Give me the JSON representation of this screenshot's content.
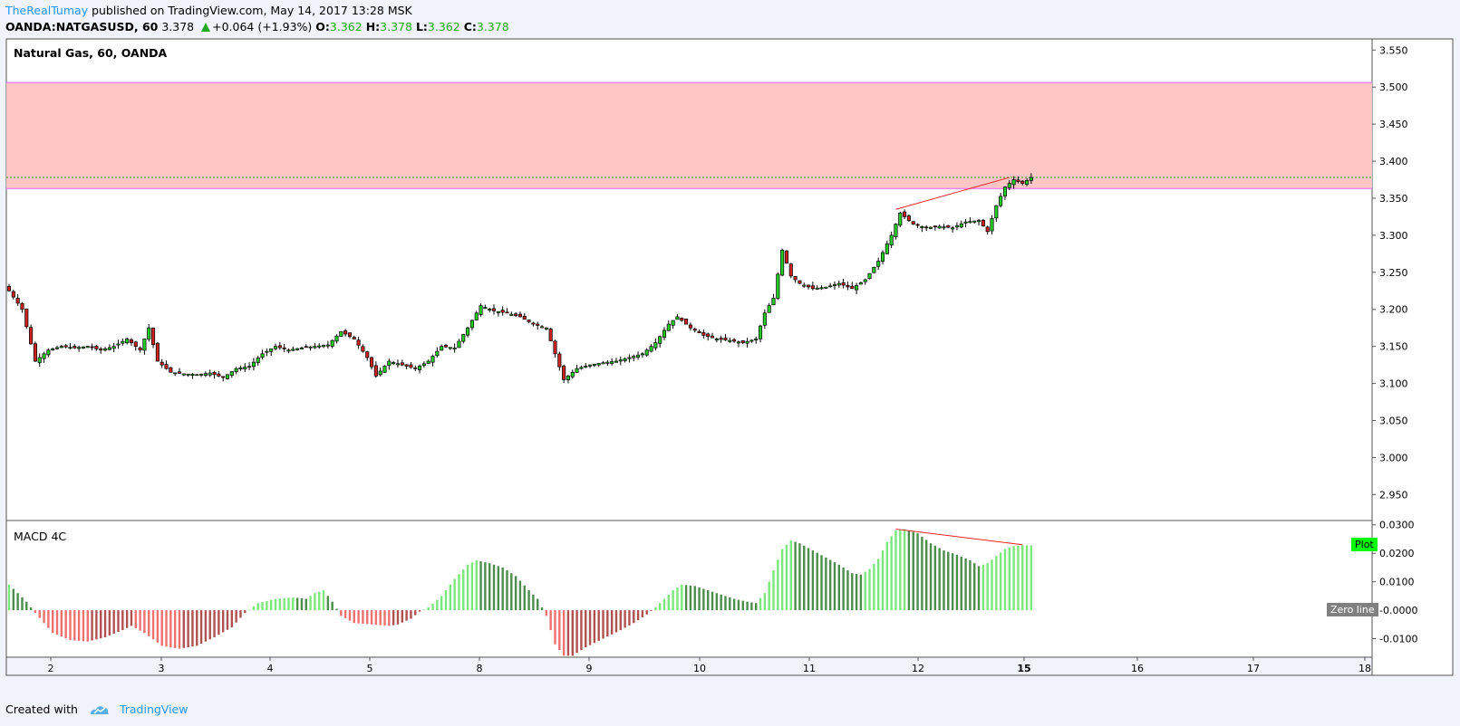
{
  "header": {
    "author": "TheRealTumay",
    "published_text": "published on TradingView.com, May 14, 2017 13:28 MSK",
    "symbol": "OANDA:NATGASUSD, 60",
    "last": "3.378",
    "change": "+0.064 (+1.93%)",
    "o_label": "O:",
    "o_value": "3.362",
    "h_label": "H:",
    "h_value": "3.378",
    "l_label": "L:",
    "l_value": "3.362",
    "c_label": "C:",
    "c_value": "3.378"
  },
  "footer": {
    "created_with": "Created with",
    "brand": "TradingView"
  },
  "colors": {
    "up": "#22cc22",
    "down": "#cc2222",
    "zone_fill": "#ffc6c6",
    "zone_border": "#ee88ee",
    "macd_bright_green": "#7be87b",
    "macd_dark_green": "#4c8c4c",
    "macd_bright_red": "#f07070",
    "macd_dark_red": "#b05050",
    "plot_tag": "#00ff00",
    "zero_tag": "#808080"
  },
  "chart_data": [
    {
      "type": "candlestick",
      "title": "Natural Gas, 60, OANDA",
      "x_tick_labels": [
        "2",
        "3",
        "4",
        "5",
        "8",
        "9",
        "10",
        "11",
        "12",
        "15",
        "16",
        "17",
        "18"
      ],
      "y_tick_labels": [
        "3.550",
        "3.500",
        "3.450",
        "3.400",
        "3.350",
        "3.300",
        "3.250",
        "3.200",
        "3.150",
        "3.100",
        "3.050",
        "3.000",
        "2.950"
      ],
      "ylim": [
        2.915,
        3.565
      ],
      "resistance_zone": [
        3.363,
        3.506
      ],
      "last_price_line": 3.378,
      "trendline": {
        "from": [
          "12",
          3.335
        ],
        "to": [
          "15",
          3.378
        ]
      },
      "close_path": [
        [
          0,
          3.225
        ],
        [
          3,
          3.2
        ],
        [
          6,
          3.13
        ],
        [
          9,
          3.145
        ],
        [
          12,
          3.15
        ],
        [
          15,
          3.148
        ],
        [
          18,
          3.15
        ],
        [
          21,
          3.145
        ],
        [
          24,
          3.15
        ],
        [
          27,
          3.16
        ],
        [
          30,
          3.145
        ],
        [
          32,
          3.175
        ],
        [
          34,
          3.13
        ],
        [
          37,
          3.115
        ],
        [
          40,
          3.113
        ],
        [
          43,
          3.112
        ],
        [
          46,
          3.114
        ],
        [
          49,
          3.108
        ],
        [
          52,
          3.12
        ],
        [
          55,
          3.123
        ],
        [
          58,
          3.14
        ],
        [
          61,
          3.15
        ],
        [
          64,
          3.145
        ],
        [
          67,
          3.148
        ],
        [
          70,
          3.15
        ],
        [
          73,
          3.152
        ],
        [
          76,
          3.17
        ],
        [
          79,
          3.16
        ],
        [
          82,
          3.135
        ],
        [
          84,
          3.11
        ],
        [
          87,
          3.13
        ],
        [
          90,
          3.125
        ],
        [
          93,
          3.12
        ],
        [
          96,
          3.13
        ],
        [
          99,
          3.15
        ],
        [
          102,
          3.148
        ],
        [
          105,
          3.175
        ],
        [
          108,
          3.205
        ],
        [
          111,
          3.198
        ],
        [
          114,
          3.195
        ],
        [
          117,
          3.19
        ],
        [
          120,
          3.18
        ],
        [
          123,
          3.175
        ],
        [
          125,
          3.14
        ],
        [
          127,
          3.105
        ],
        [
          130,
          3.12
        ],
        [
          133,
          3.125
        ],
        [
          136,
          3.128
        ],
        [
          139,
          3.13
        ],
        [
          142,
          3.135
        ],
        [
          145,
          3.14
        ],
        [
          148,
          3.155
        ],
        [
          151,
          3.18
        ],
        [
          153,
          3.19
        ],
        [
          156,
          3.175
        ],
        [
          159,
          3.165
        ],
        [
          162,
          3.16
        ],
        [
          165,
          3.158
        ],
        [
          168,
          3.155
        ],
        [
          171,
          3.16
        ],
        [
          173,
          3.195
        ],
        [
          175,
          3.215
        ],
        [
          177,
          3.28
        ],
        [
          179,
          3.245
        ],
        [
          181,
          3.235
        ],
        [
          184,
          3.228
        ],
        [
          187,
          3.23
        ],
        [
          190,
          3.235
        ],
        [
          193,
          3.228
        ],
        [
          196,
          3.24
        ],
        [
          199,
          3.265
        ],
        [
          202,
          3.3
        ],
        [
          204,
          3.33
        ],
        [
          207,
          3.315
        ],
        [
          210,
          3.31
        ],
        [
          213,
          3.312
        ],
        [
          216,
          3.31
        ],
        [
          219,
          3.318
        ],
        [
          222,
          3.32
        ],
        [
          224,
          3.305
        ],
        [
          226,
          3.34
        ],
        [
          228,
          3.365
        ],
        [
          230,
          3.375
        ],
        [
          232,
          3.37
        ],
        [
          234,
          3.378
        ]
      ]
    },
    {
      "type": "bar",
      "title": "MACD 4C",
      "y_tick_labels": [
        "0.0300",
        "0.0200",
        "0.0100",
        "-0.0000",
        "-0.0100"
      ],
      "ylim": [
        -0.0165,
        0.0315
      ],
      "last_value": 0.0228,
      "plot_label": "Plot",
      "zero_label": "Zero line",
      "value_path": [
        [
          0,
          0.009
        ],
        [
          4,
          0.003
        ],
        [
          6,
          -0.001
        ],
        [
          10,
          -0.008
        ],
        [
          14,
          -0.0105
        ],
        [
          18,
          -0.011
        ],
        [
          22,
          -0.0095
        ],
        [
          26,
          -0.007
        ],
        [
          28,
          -0.0055
        ],
        [
          31,
          -0.008
        ],
        [
          35,
          -0.0125
        ],
        [
          39,
          -0.0135
        ],
        [
          43,
          -0.0125
        ],
        [
          47,
          -0.0095
        ],
        [
          51,
          -0.006
        ],
        [
          54,
          -0.001
        ],
        [
          57,
          0.0025
        ],
        [
          61,
          0.004
        ],
        [
          65,
          0.0045
        ],
        [
          68,
          0.004
        ],
        [
          70,
          0.006
        ],
        [
          72,
          0.007
        ],
        [
          74,
          0.003
        ],
        [
          76,
          -0.002
        ],
        [
          79,
          -0.0045
        ],
        [
          83,
          -0.005
        ],
        [
          87,
          -0.0055
        ],
        [
          89,
          -0.005
        ],
        [
          92,
          -0.003
        ],
        [
          94,
          -0.0005
        ],
        [
          96,
          0.001
        ],
        [
          99,
          0.005
        ],
        [
          102,
          0.011
        ],
        [
          105,
          0.016
        ],
        [
          107,
          0.0175
        ],
        [
          110,
          0.0165
        ],
        [
          113,
          0.015
        ],
        [
          116,
          0.012
        ],
        [
          119,
          0.007
        ],
        [
          121,
          0.004
        ],
        [
          123,
          -0.002
        ],
        [
          125,
          -0.012
        ],
        [
          127,
          -0.016
        ],
        [
          129,
          -0.016
        ],
        [
          132,
          -0.013
        ],
        [
          136,
          -0.01
        ],
        [
          140,
          -0.007
        ],
        [
          143,
          -0.0045
        ],
        [
          146,
          -0.0015
        ],
        [
          148,
          0.001
        ],
        [
          150,
          0.004
        ],
        [
          152,
          0.007
        ],
        [
          154,
          0.009
        ],
        [
          157,
          0.0085
        ],
        [
          160,
          0.007
        ],
        [
          163,
          0.0055
        ],
        [
          166,
          0.004
        ],
        [
          169,
          0.003
        ],
        [
          171,
          0.0025
        ],
        [
          173,
          0.006
        ],
        [
          175,
          0.014
        ],
        [
          177,
          0.0215
        ],
        [
          179,
          0.0245
        ],
        [
          181,
          0.0235
        ],
        [
          184,
          0.021
        ],
        [
          187,
          0.0185
        ],
        [
          190,
          0.016
        ],
        [
          193,
          0.013
        ],
        [
          195,
          0.0125
        ],
        [
          197,
          0.0145
        ],
        [
          199,
          0.018
        ],
        [
          201,
          0.024
        ],
        [
          203,
          0.028
        ],
        [
          205,
          0.0285
        ],
        [
          208,
          0.027
        ],
        [
          211,
          0.0235
        ],
        [
          214,
          0.021
        ],
        [
          217,
          0.0195
        ],
        [
          220,
          0.0175
        ],
        [
          222,
          0.0155
        ],
        [
          224,
          0.0165
        ],
        [
          226,
          0.019
        ],
        [
          228,
          0.0215
        ],
        [
          230,
          0.0225
        ],
        [
          232,
          0.0228
        ]
      ],
      "trendline": {
        "from": [
          "12",
          0.0285
        ],
        "to": [
          "15",
          0.023
        ]
      }
    }
  ]
}
